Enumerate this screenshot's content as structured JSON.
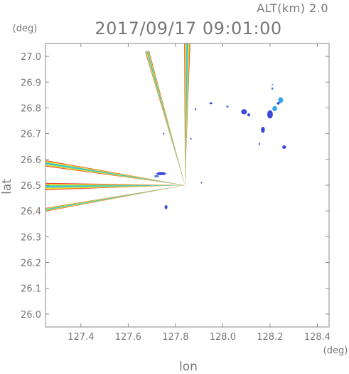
{
  "header": {
    "alt_label": "ALT(km)  2.0",
    "timestamp": "2017/09/17  09:01:00"
  },
  "chart_data": {
    "type": "heatmap",
    "title": "2017/09/17  09:01:00",
    "subtitle": "ALT(km)  2.0",
    "xlabel": "lon",
    "ylabel": "lat",
    "x_unit": "(deg)",
    "y_unit": "(deg)",
    "xlim": [
      127.25,
      128.45
    ],
    "ylim": [
      25.95,
      27.05
    ],
    "xticks": [
      "127.4",
      "127.6",
      "127.8",
      "128.0",
      "128.2",
      "128.4"
    ],
    "xtick_values": [
      127.4,
      127.6,
      127.8,
      128.0,
      128.2,
      128.4
    ],
    "yticks": [
      "26.0",
      "26.1",
      "26.2",
      "26.3",
      "26.4",
      "26.5",
      "26.6",
      "26.7",
      "26.8",
      "26.9",
      "27.0"
    ],
    "ytick_values": [
      26.0,
      26.1,
      26.2,
      26.3,
      26.4,
      26.5,
      26.6,
      26.7,
      26.8,
      26.9,
      27.0
    ],
    "origin": {
      "lon": 127.84,
      "lat": 26.5
    },
    "beams": [
      {
        "name": "beam-north",
        "lon": 127.85,
        "lat": 27.05,
        "half_width_deg": 0.012
      },
      {
        "name": "beam-north-west",
        "lon": 127.68,
        "lat": 27.02,
        "half_width_deg": 0.008
      },
      {
        "name": "beam-west-upper",
        "lon": 127.25,
        "lat": 26.585,
        "half_width_deg": 0.012
      },
      {
        "name": "beam-west",
        "lon": 127.25,
        "lat": 26.495,
        "half_width_deg": 0.014
      },
      {
        "name": "beam-west-lower",
        "lon": 127.25,
        "lat": 26.405,
        "half_width_deg": 0.007
      }
    ],
    "echoes": [
      {
        "lon": 127.74,
        "lat": 26.545,
        "rx": 0.02,
        "ry": 0.006,
        "color": "#3a49d8"
      },
      {
        "lon": 127.72,
        "lat": 26.535,
        "rx": 0.01,
        "ry": 0.005,
        "color": "#4f7ff0"
      },
      {
        "lon": 127.76,
        "lat": 26.415,
        "rx": 0.006,
        "ry": 0.008,
        "color": "#3a49d8"
      },
      {
        "lon": 127.95,
        "lat": 26.818,
        "rx": 0.006,
        "ry": 0.004,
        "color": "#3a49d8"
      },
      {
        "lon": 128.02,
        "lat": 26.805,
        "rx": 0.005,
        "ry": 0.004,
        "color": "#4f7ff0"
      },
      {
        "lon": 128.09,
        "lat": 26.785,
        "rx": 0.012,
        "ry": 0.01,
        "color": "#3a49d8"
      },
      {
        "lon": 128.11,
        "lat": 26.773,
        "rx": 0.006,
        "ry": 0.006,
        "color": "#3a49d8"
      },
      {
        "lon": 128.2,
        "lat": 26.775,
        "rx": 0.012,
        "ry": 0.016,
        "color": "#3a49d8"
      },
      {
        "lon": 128.22,
        "lat": 26.797,
        "rx": 0.01,
        "ry": 0.01,
        "color": "#2fa5f0"
      },
      {
        "lon": 128.245,
        "lat": 26.83,
        "rx": 0.01,
        "ry": 0.012,
        "color": "#2fa5f0"
      },
      {
        "lon": 128.235,
        "lat": 26.818,
        "rx": 0.006,
        "ry": 0.005,
        "color": "#3a49d8"
      },
      {
        "lon": 128.21,
        "lat": 26.875,
        "rx": 0.004,
        "ry": 0.005,
        "color": "#4f7ff0"
      },
      {
        "lon": 128.21,
        "lat": 26.89,
        "rx": 0.002,
        "ry": 0.003,
        "color": "#2fa5f0"
      },
      {
        "lon": 128.17,
        "lat": 26.715,
        "rx": 0.008,
        "ry": 0.012,
        "color": "#3a49d8"
      },
      {
        "lon": 128.26,
        "lat": 26.648,
        "rx": 0.008,
        "ry": 0.007,
        "color": "#3a49d8"
      },
      {
        "lon": 127.885,
        "lat": 26.795,
        "rx": 0.003,
        "ry": 0.004,
        "color": "#3a49d8"
      },
      {
        "lon": 128.155,
        "lat": 26.66,
        "rx": 0.002,
        "ry": 0.004,
        "color": "#3a49d8"
      },
      {
        "lon": 127.75,
        "lat": 26.7,
        "rx": 0.002,
        "ry": 0.003,
        "color": "#3a49d8"
      },
      {
        "lon": 127.865,
        "lat": 26.68,
        "rx": 0.002,
        "ry": 0.003,
        "color": "#3a49d8"
      },
      {
        "lon": 127.91,
        "lat": 26.51,
        "rx": 0.002,
        "ry": 0.003,
        "color": "#3a49d8"
      }
    ],
    "grid": false,
    "legend": "none"
  }
}
